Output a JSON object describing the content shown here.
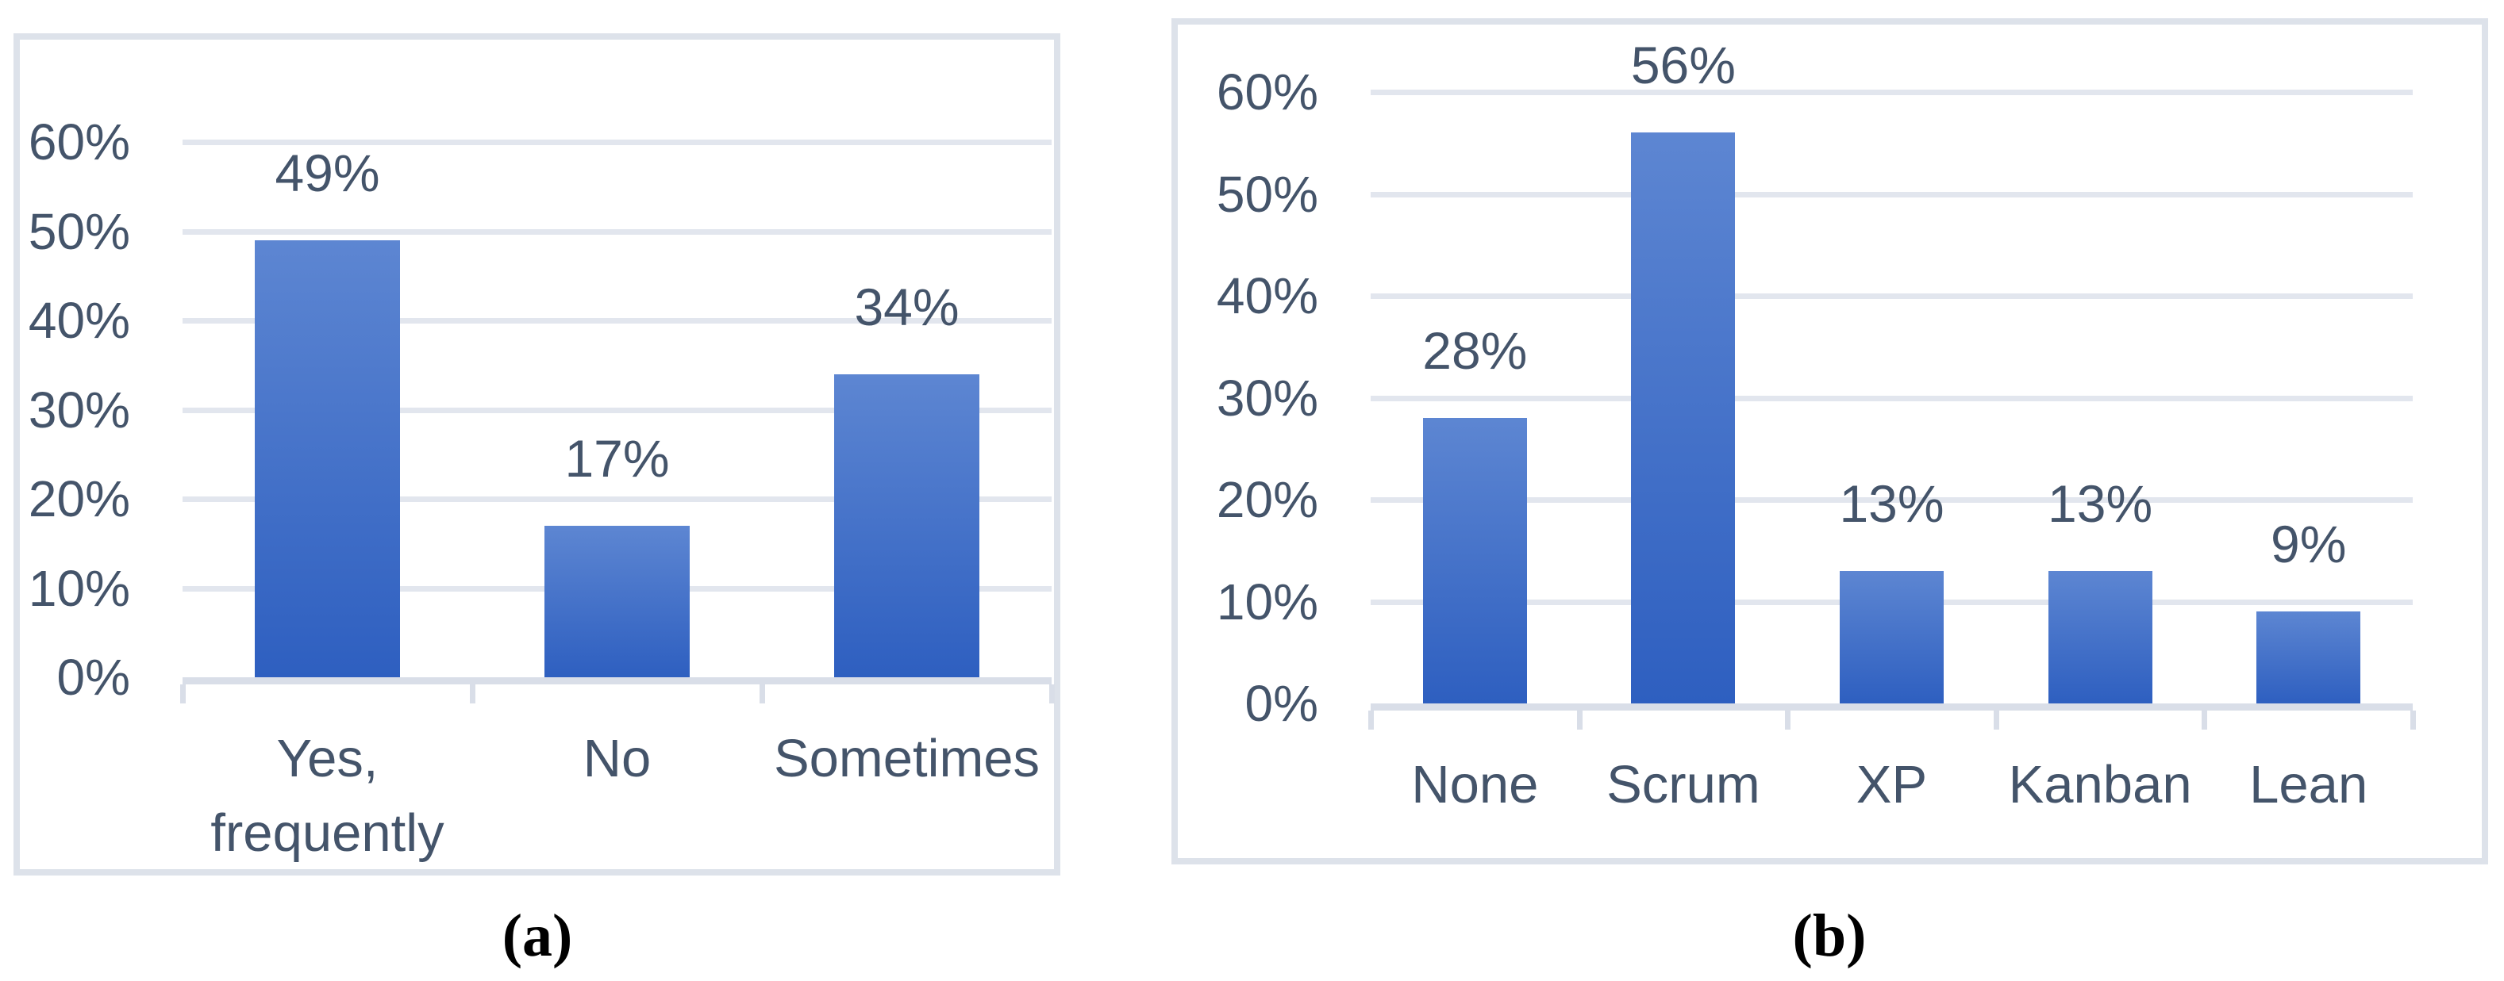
{
  "figure": {
    "captions": {
      "a": "(a)",
      "b": "(b)"
    }
  },
  "chart_data": [
    {
      "id": "a",
      "type": "bar",
      "title": "",
      "categories": [
        "Yes,\nfrequently",
        "No",
        "Sometimes"
      ],
      "values": [
        49,
        17,
        34
      ],
      "data_labels": [
        "49%",
        "17%",
        "34%"
      ],
      "xlabel": "",
      "ylabel": "",
      "ylim": [
        0,
        60
      ],
      "yticks": [
        0,
        10,
        20,
        30,
        40,
        50,
        60
      ],
      "ytick_labels": [
        "0%",
        "10%",
        "20%",
        "30%",
        "40%",
        "50%",
        "60%"
      ],
      "grid": true,
      "legend_position": "none",
      "caption": "(a)"
    },
    {
      "id": "b",
      "type": "bar",
      "title": "",
      "categories": [
        "None",
        "Scrum",
        "XP",
        "Kanban",
        "Lean"
      ],
      "values": [
        28,
        56,
        13,
        13,
        9
      ],
      "data_labels": [
        "28%",
        "56%",
        "13%",
        "13%",
        "9%"
      ],
      "xlabel": "",
      "ylabel": "",
      "ylim": [
        0,
        60
      ],
      "yticks": [
        0,
        10,
        20,
        30,
        40,
        50,
        60
      ],
      "ytick_labels": [
        "0%",
        "10%",
        "20%",
        "30%",
        "40%",
        "50%",
        "60%"
      ],
      "grid": true,
      "legend_position": "none",
      "caption": "(b)"
    }
  ],
  "style": {
    "bar_gradient_top": "#5d86d2",
    "bar_gradient_bottom": "#2e5fc0",
    "grid_color": "#e2e6ee",
    "axis_color": "#d9dee8",
    "panel_border_color": "#dde2ea",
    "text_color": "#44546a",
    "caption_color": "#000000",
    "background": "#ffffff"
  }
}
